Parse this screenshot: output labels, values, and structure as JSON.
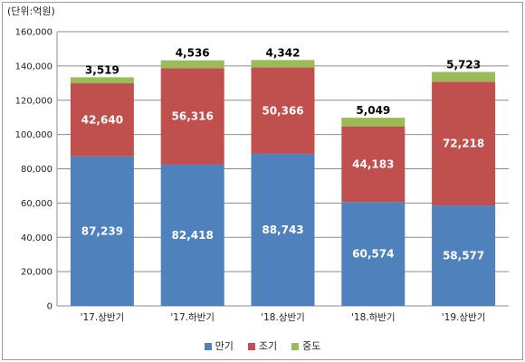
{
  "unit_label": "(단위:억원)",
  "chart_data": {
    "type": "bar",
    "stacked": true,
    "title": "",
    "xlabel": "",
    "ylabel": "",
    "ylim": [
      0,
      160000
    ],
    "yticks": [
      "0",
      "20,000",
      "40,000",
      "60,000",
      "80,000",
      "100,000",
      "120,000",
      "140,000",
      "160,000"
    ],
    "grid": true,
    "legend_position": "bottom",
    "categories": [
      "'17.상반기",
      "'17.하반기",
      "'18.상반기",
      "'18.하반기",
      "'19.상반기"
    ],
    "series": [
      {
        "name": "만기",
        "color": "#4f81bd",
        "values": [
          87239,
          82418,
          88743,
          60574,
          58577
        ],
        "labels": [
          "87,239",
          "82,418",
          "88,743",
          "60,574",
          "58,577"
        ]
      },
      {
        "name": "조기",
        "color": "#c0504d",
        "values": [
          42640,
          56316,
          50366,
          44183,
          72218
        ],
        "labels": [
          "42,640",
          "56,316",
          "50,366",
          "44,183",
          "72,218"
        ]
      },
      {
        "name": "중도",
        "color": "#9bbb59",
        "values": [
          3519,
          4536,
          4342,
          5049,
          5723
        ],
        "labels": [
          "3,519",
          "4,536",
          "4,342",
          "5,049",
          "5,723"
        ]
      }
    ]
  }
}
